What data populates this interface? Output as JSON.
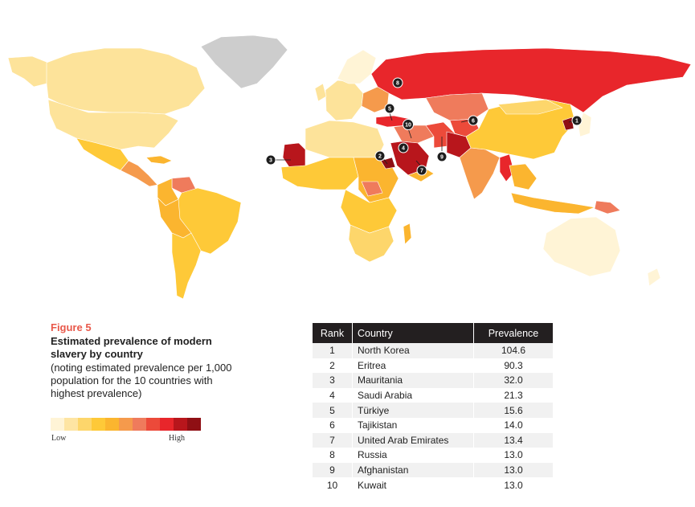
{
  "figure": {
    "label": "Figure 5",
    "title": "Estimated prevalence of modern slavery by country",
    "subtitle": "(noting estimated prevalence per 1,000 population for the 10 countries with highest prevalence)"
  },
  "legend": {
    "low_label": "Low",
    "high_label": "High",
    "colors": [
      "#fff4d6",
      "#fee5a3",
      "#fdd66b",
      "#fec938",
      "#fbb52f",
      "#f59a4c",
      "#ef7b5c",
      "#ec4a3a",
      "#e8262b",
      "#b8161c",
      "#8f0f14"
    ]
  },
  "map": {
    "map_markers": [
      {
        "label": "1",
        "country": "North Korea"
      },
      {
        "label": "2",
        "country": "Eritrea"
      },
      {
        "label": "3",
        "country": "Mauritania"
      },
      {
        "label": "4",
        "country": "Saudi Arabia"
      },
      {
        "label": "5",
        "country": "Türkiye"
      },
      {
        "label": "6",
        "country": "Tajikistan"
      },
      {
        "label": "7",
        "country": "United Arab Emirates"
      },
      {
        "label": "8",
        "country": "Russia"
      },
      {
        "label": "9",
        "country": "Afghanistan"
      },
      {
        "label": "10",
        "country": "Kuwait"
      }
    ]
  },
  "table": {
    "headers": {
      "rank": "Rank",
      "country": "Country",
      "prevalence": "Prevalence"
    },
    "rows": [
      {
        "rank": "1",
        "country": "North Korea",
        "prevalence": "104.6"
      },
      {
        "rank": "2",
        "country": "Eritrea",
        "prevalence": "90.3"
      },
      {
        "rank": "3",
        "country": "Mauritania",
        "prevalence": "32.0"
      },
      {
        "rank": "4",
        "country": "Saudi Arabia",
        "prevalence": "21.3"
      },
      {
        "rank": "5",
        "country": "Türkiye",
        "prevalence": "15.6"
      },
      {
        "rank": "6",
        "country": "Tajikistan",
        "prevalence": "14.0"
      },
      {
        "rank": "7",
        "country": "United Arab Emirates",
        "prevalence": "13.4"
      },
      {
        "rank": "8",
        "country": "Russia",
        "prevalence": "13.0"
      },
      {
        "rank": "9",
        "country": "Afghanistan",
        "prevalence": "13.0"
      },
      {
        "rank": "10",
        "country": "Kuwait",
        "prevalence": "13.0"
      }
    ]
  }
}
